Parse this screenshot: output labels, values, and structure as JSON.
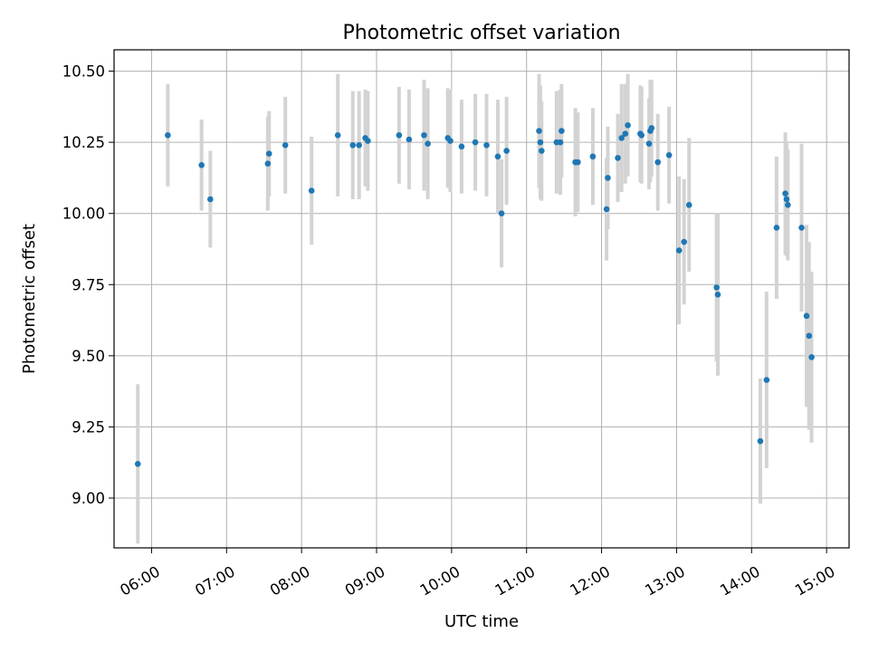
{
  "chart_data": {
    "type": "scatter",
    "title": "Photometric offset variation",
    "xlabel": "UTC time",
    "ylabel": "Photometric offset",
    "x_unit": "UTC hours",
    "xlim": [
      5.5,
      15.3
    ],
    "ylim": [
      8.825,
      10.575
    ],
    "grid": true,
    "x_ticks": [
      "06:00",
      "07:00",
      "08:00",
      "09:00",
      "10:00",
      "11:00",
      "12:00",
      "13:00",
      "14:00",
      "15:00"
    ],
    "y_ticks": [
      "9.00",
      "9.25",
      "9.50",
      "9.75",
      "10.00",
      "10.25",
      "10.50"
    ],
    "colors": {
      "marker": "#1f77b4",
      "errorbar": "#d3d3d3",
      "grid": "#b0b0b0"
    },
    "points": [
      {
        "t": "05:49",
        "y": 9.12,
        "err": 0.28
      },
      {
        "t": "06:13",
        "y": 10.275,
        "err": 0.18
      },
      {
        "t": "06:40",
        "y": 10.17,
        "err": 0.16
      },
      {
        "t": "06:47",
        "y": 10.05,
        "err": 0.17
      },
      {
        "t": "07:33",
        "y": 10.175,
        "err": 0.165
      },
      {
        "t": "07:34",
        "y": 10.21,
        "err": 0.15
      },
      {
        "t": "07:47",
        "y": 10.24,
        "err": 0.17
      },
      {
        "t": "08:08",
        "y": 10.08,
        "err": 0.19
      },
      {
        "t": "08:29",
        "y": 10.275,
        "err": 0.215
      },
      {
        "t": "08:41",
        "y": 10.24,
        "err": 0.19
      },
      {
        "t": "08:46",
        "y": 10.24,
        "err": 0.19
      },
      {
        "t": "08:51",
        "y": 10.265,
        "err": 0.17
      },
      {
        "t": "08:53",
        "y": 10.255,
        "err": 0.175
      },
      {
        "t": "09:18",
        "y": 10.275,
        "err": 0.17
      },
      {
        "t": "09:26",
        "y": 10.26,
        "err": 0.175
      },
      {
        "t": "09:38",
        "y": 10.275,
        "err": 0.195
      },
      {
        "t": "09:41",
        "y": 10.245,
        "err": 0.195
      },
      {
        "t": "09:57",
        "y": 10.265,
        "err": 0.175
      },
      {
        "t": "09:59",
        "y": 10.255,
        "err": 0.18
      },
      {
        "t": "10:08",
        "y": 10.235,
        "err": 0.165
      },
      {
        "t": "10:19",
        "y": 10.25,
        "err": 0.17
      },
      {
        "t": "10:28",
        "y": 10.24,
        "err": 0.18
      },
      {
        "t": "10:37",
        "y": 10.2,
        "err": 0.2
      },
      {
        "t": "10:40",
        "y": 10.0,
        "err": 0.19
      },
      {
        "t": "10:44",
        "y": 10.22,
        "err": 0.19
      },
      {
        "t": "11:10",
        "y": 10.29,
        "err": 0.2
      },
      {
        "t": "11:11",
        "y": 10.25,
        "err": 0.2
      },
      {
        "t": "11:12",
        "y": 10.22,
        "err": 0.175
      },
      {
        "t": "11:24",
        "y": 10.25,
        "err": 0.18
      },
      {
        "t": "11:27",
        "y": 10.25,
        "err": 0.185
      },
      {
        "t": "11:28",
        "y": 10.29,
        "err": 0.165
      },
      {
        "t": "11:39",
        "y": 10.18,
        "err": 0.19
      },
      {
        "t": "11:41",
        "y": 10.18,
        "err": 0.175
      },
      {
        "t": "11:53",
        "y": 10.2,
        "err": 0.17
      },
      {
        "t": "12:04",
        "y": 10.015,
        "err": 0.18
      },
      {
        "t": "12:05",
        "y": 10.125,
        "err": 0.18
      },
      {
        "t": "12:13",
        "y": 10.195,
        "err": 0.155
      },
      {
        "t": "12:16",
        "y": 10.265,
        "err": 0.19
      },
      {
        "t": "12:19",
        "y": 10.28,
        "err": 0.175
      },
      {
        "t": "12:21",
        "y": 10.31,
        "err": 0.18
      },
      {
        "t": "12:31",
        "y": 10.28,
        "err": 0.17
      },
      {
        "t": "12:32",
        "y": 10.275,
        "err": 0.17
      },
      {
        "t": "12:38",
        "y": 10.245,
        "err": 0.16
      },
      {
        "t": "12:39",
        "y": 10.29,
        "err": 0.18
      },
      {
        "t": "12:40",
        "y": 10.3,
        "err": 0.17
      },
      {
        "t": "12:45",
        "y": 10.18,
        "err": 0.17
      },
      {
        "t": "12:54",
        "y": 10.205,
        "err": 0.17
      },
      {
        "t": "13:02",
        "y": 9.87,
        "err": 0.26
      },
      {
        "t": "13:06",
        "y": 9.9,
        "err": 0.22
      },
      {
        "t": "13:10",
        "y": 10.03,
        "err": 0.235
      },
      {
        "t": "13:32",
        "y": 9.74,
        "err": 0.26
      },
      {
        "t": "13:33",
        "y": 9.715,
        "err": 0.285
      },
      {
        "t": "14:07",
        "y": 9.2,
        "err": 0.22
      },
      {
        "t": "14:12",
        "y": 9.415,
        "err": 0.31
      },
      {
        "t": "14:20",
        "y": 9.95,
        "err": 0.25
      },
      {
        "t": "14:27",
        "y": 10.07,
        "err": 0.215
      },
      {
        "t": "14:28",
        "y": 10.05,
        "err": 0.2
      },
      {
        "t": "14:29",
        "y": 10.03,
        "err": 0.195
      },
      {
        "t": "14:40",
        "y": 9.95,
        "err": 0.295
      },
      {
        "t": "14:44",
        "y": 9.64,
        "err": 0.32
      },
      {
        "t": "14:46",
        "y": 9.57,
        "err": 0.33
      },
      {
        "t": "14:48",
        "y": 9.495,
        "err": 0.3
      }
    ]
  }
}
